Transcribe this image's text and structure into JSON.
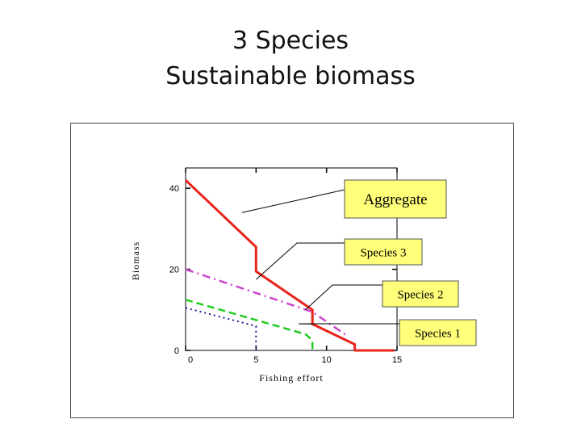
{
  "slide": {
    "title_line1": "3 Species",
    "title_line2": "Sustainable biomass"
  },
  "chart_data": {
    "type": "line",
    "xlabel": "Fishing effort",
    "ylabel": "Biomass",
    "xlim": [
      0,
      15
    ],
    "ylim": [
      0,
      45
    ],
    "x_ticks": [
      0,
      5,
      10,
      15
    ],
    "y_ticks": [
      0,
      20,
      40
    ],
    "grid": false,
    "series": [
      {
        "name": "Aggregate",
        "color": "#e8241b",
        "style": "solid",
        "points": [
          [
            0,
            42
          ],
          [
            5,
            25.5
          ],
          [
            5,
            19.5
          ],
          [
            9,
            10
          ],
          [
            9,
            6.5
          ],
          [
            12,
            1.5
          ],
          [
            12,
            0
          ],
          [
            14.8,
            0
          ]
        ]
      },
      {
        "name": "Species 3",
        "color": "#cc44cc",
        "style": "dashdot",
        "points": [
          [
            0,
            20
          ],
          [
            9,
            9.5
          ],
          [
            11.5,
            3.5
          ]
        ]
      },
      {
        "name": "Species 2",
        "color": "#22cc22",
        "style": "dashed",
        "points": [
          [
            0,
            12.5
          ],
          [
            8.5,
            4
          ],
          [
            9,
            2.5
          ],
          [
            9,
            0
          ]
        ]
      },
      {
        "name": "Species 1",
        "color": "#1a1a99",
        "style": "dotted",
        "points": [
          [
            0,
            10.5
          ],
          [
            5,
            6
          ],
          [
            5,
            0
          ]
        ]
      }
    ],
    "callouts": [
      {
        "label": "Aggregate",
        "series": "Aggregate",
        "anchor": [
          4,
          34
        ]
      },
      {
        "label": "Species 3",
        "series": "Species 3",
        "anchor": [
          5,
          17.5
        ]
      },
      {
        "label": "Species 2",
        "series": "Species 2",
        "anchor": [
          8.5,
          10
        ]
      },
      {
        "label": "Species 1",
        "series": "Species 1",
        "anchor": [
          9,
          6.5
        ]
      }
    ],
    "callout_fill": "#ffff7a"
  }
}
